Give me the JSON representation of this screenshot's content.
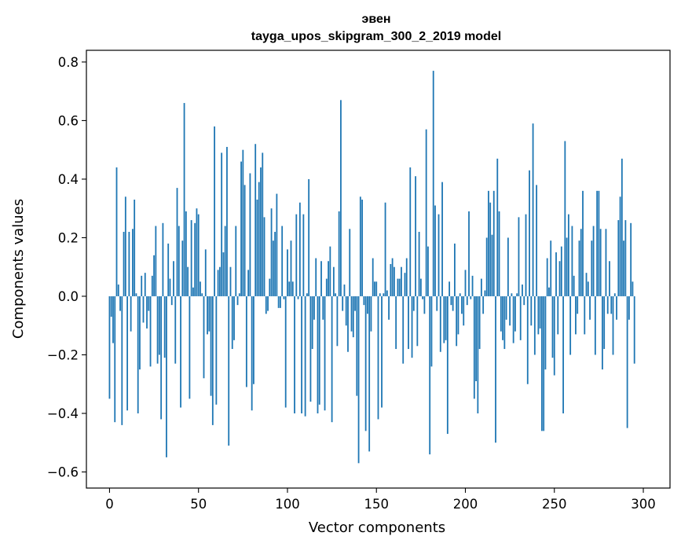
{
  "chart_data": {
    "type": "bar",
    "title_line1": "эвен",
    "title_line2": "tayga_upos_skipgram_300_2_2019 model",
    "xlabel": "Vector components",
    "ylabel": "Components values",
    "xlim": [
      -13,
      315
    ],
    "ylim": [
      -0.655,
      0.84
    ],
    "x_ticks": [
      0,
      50,
      100,
      150,
      200,
      250,
      300
    ],
    "y_ticks": [
      -0.6,
      -0.4,
      -0.2,
      0.0,
      0.2,
      0.4,
      0.6,
      0.8
    ],
    "y_tick_labels": [
      "−0.6",
      "−0.4",
      "−0.2",
      "0.0",
      "0.2",
      "0.4",
      "0.6",
      "0.8"
    ],
    "bar_color": "#1f77b4",
    "values": [
      -0.35,
      -0.07,
      -0.16,
      -0.43,
      0.44,
      0.04,
      -0.05,
      -0.44,
      0.22,
      0.34,
      -0.39,
      0.22,
      -0.12,
      0.23,
      0.33,
      0.01,
      -0.4,
      -0.25,
      0.07,
      -0.09,
      0.08,
      -0.11,
      -0.05,
      -0.24,
      0.07,
      0.14,
      0.24,
      -0.23,
      -0.2,
      -0.42,
      0.25,
      -0.21,
      -0.55,
      0.18,
      0.06,
      -0.03,
      0.12,
      -0.23,
      0.37,
      0.24,
      -0.38,
      0.19,
      0.66,
      0.29,
      0.1,
      -0.35,
      0.26,
      0.03,
      0.25,
      0.3,
      0.28,
      0.05,
      0.01,
      -0.28,
      0.16,
      -0.13,
      -0.12,
      -0.34,
      -0.44,
      0.58,
      -0.37,
      0.09,
      0.1,
      0.49,
      0.15,
      0.24,
      0.51,
      -0.51,
      0.1,
      -0.18,
      -0.15,
      0.24,
      -0.03,
      0.01,
      0.46,
      0.5,
      0.38,
      -0.31,
      0.09,
      0.42,
      -0.39,
      -0.3,
      0.52,
      0.33,
      0.39,
      0.44,
      0.49,
      0.27,
      -0.06,
      -0.05,
      0.06,
      0.3,
      0.19,
      0.22,
      0.35,
      -0.04,
      -0.04,
      0.24,
      -0.01,
      -0.38,
      0.16,
      0.05,
      0.19,
      0.05,
      -0.4,
      0.28,
      -0.01,
      0.32,
      -0.4,
      0.28,
      -0.41,
      0.01,
      0.4,
      -0.36,
      -0.18,
      -0.08,
      0.13,
      -0.4,
      -0.37,
      0.12,
      -0.08,
      -0.39,
      0.06,
      0.12,
      0.17,
      -0.43,
      0.1,
      0.01,
      -0.17,
      0.29,
      0.67,
      -0.05,
      0.04,
      -0.1,
      -0.19,
      0.23,
      -0.12,
      -0.14,
      -0.05,
      -0.34,
      -0.57,
      0.34,
      0.33,
      -0.03,
      -0.46,
      -0.06,
      -0.53,
      -0.12,
      0.13,
      0.05,
      0.05,
      -0.42,
      0.01,
      -0.38,
      0.01,
      0.32,
      0.02,
      -0.08,
      0.11,
      0.13,
      0.1,
      -0.18,
      0.06,
      0.06,
      0.1,
      -0.23,
      0.08,
      0.13,
      -0.18,
      0.44,
      -0.21,
      -0.05,
      0.41,
      -0.17,
      0.22,
      0.06,
      -0.01,
      -0.06,
      0.57,
      0.17,
      -0.54,
      -0.24,
      0.77,
      0.31,
      -0.05,
      0.28,
      -0.19,
      0.39,
      -0.16,
      -0.15,
      -0.47,
      0.05,
      -0.03,
      -0.05,
      0.18,
      -0.17,
      -0.13,
      0.01,
      -0.06,
      -0.1,
      0.09,
      -0.03,
      0.29,
      -0.01,
      0.07,
      -0.35,
      -0.29,
      -0.4,
      -0.18,
      0.06,
      -0.06,
      0.02,
      0.2,
      0.36,
      0.32,
      0.21,
      0.36,
      -0.5,
      0.47,
      0.29,
      -0.12,
      -0.15,
      -0.18,
      -0.08,
      0.2,
      -0.1,
      0.01,
      -0.16,
      -0.12,
      0.01,
      0.27,
      -0.15,
      0.04,
      -0.03,
      0.28,
      -0.3,
      0.43,
      -0.1,
      0.59,
      -0.2,
      0.38,
      -0.13,
      -0.11,
      -0.46,
      -0.46,
      -0.25,
      0.13,
      0.03,
      0.19,
      -0.21,
      -0.27,
      0.15,
      -0.13,
      0.12,
      0.17,
      -0.4,
      0.53,
      0.2,
      0.28,
      -0.2,
      0.24,
      0.07,
      -0.13,
      -0.06,
      0.19,
      0.23,
      0.36,
      -0.13,
      0.08,
      0.05,
      -0.08,
      0.19,
      0.24,
      -0.2,
      0.36,
      0.36,
      0.23,
      -0.25,
      -0.18,
      0.23,
      -0.06,
      0.12,
      -0.06,
      -0.2,
      0.01,
      -0.08,
      0.26,
      0.34,
      0.47,
      0.19,
      0.26,
      -0.45,
      -0.08,
      0.25,
      0.05,
      -0.23
    ]
  }
}
